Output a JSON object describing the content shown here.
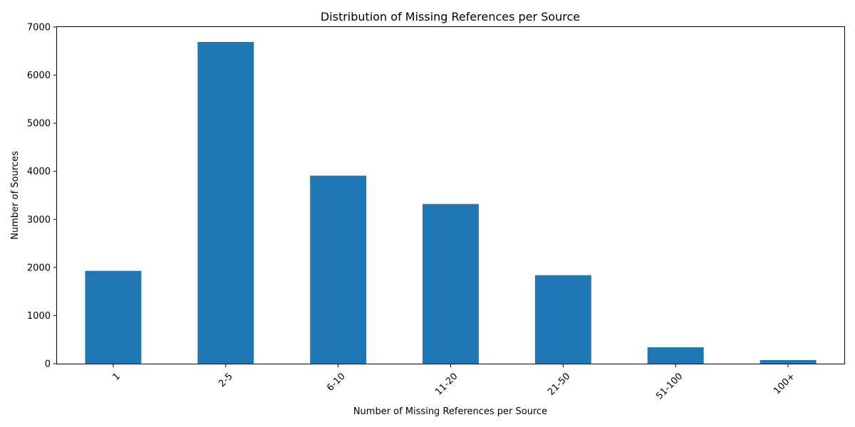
{
  "chart_data": {
    "type": "bar",
    "title": "Distribution of Missing References per Source",
    "xlabel": "Number of Missing References per Source",
    "ylabel": "Number of Sources",
    "categories": [
      "1",
      "2-5",
      "6-10",
      "11-20",
      "21-50",
      "51-100",
      "100+"
    ],
    "values": [
      1930,
      6690,
      3910,
      3320,
      1840,
      340,
      75
    ],
    "ylim": [
      0,
      7000
    ],
    "yticks": [
      0,
      1000,
      2000,
      3000,
      4000,
      5000,
      6000,
      7000
    ],
    "bar_color": "#1f77b4",
    "grid": false,
    "legend": "none"
  }
}
